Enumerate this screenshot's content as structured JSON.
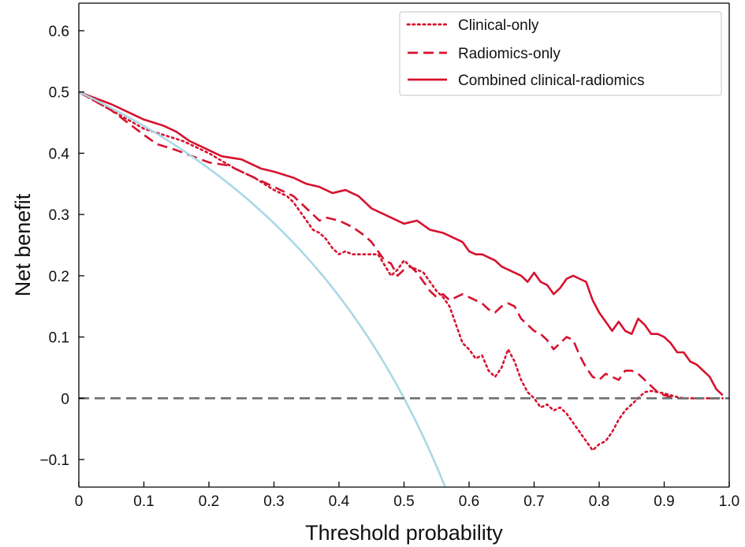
{
  "chart_data": {
    "type": "line",
    "xlabel": "Threshold probability",
    "ylabel": "Net benefit",
    "xlim": [
      0,
      1.0
    ],
    "ylim": [
      -0.145,
      0.645
    ],
    "xticks": [
      0,
      0.1,
      0.2,
      0.3,
      0.4,
      0.5,
      0.6,
      0.7,
      0.8,
      0.9,
      1.0
    ],
    "xtick_labels": [
      "0",
      "0.1",
      "0.2",
      "0.3",
      "0.4",
      "0.5",
      "0.6",
      "0.7",
      "0.8",
      "0.9",
      "1.0"
    ],
    "yticks": [
      -0.1,
      0,
      0.1,
      0.2,
      0.3,
      0.4,
      0.5,
      0.6
    ],
    "ytick_labels": [
      "−0.1",
      "0",
      "0.1",
      "0.2",
      "0.3",
      "0.4",
      "0.5",
      "0.6"
    ],
    "grid": false,
    "legend_position": "top-right",
    "series": [
      {
        "name": "Clinical-only",
        "style": "dotted",
        "color": "#d7122e",
        "x": [
          0,
          0.05,
          0.1,
          0.13,
          0.16,
          0.2,
          0.24,
          0.27,
          0.3,
          0.32,
          0.33,
          0.34,
          0.35,
          0.36,
          0.37,
          0.38,
          0.39,
          0.4,
          0.41,
          0.42,
          0.44,
          0.46,
          0.48,
          0.49,
          0.5,
          0.51,
          0.52,
          0.53,
          0.54,
          0.55,
          0.56,
          0.57,
          0.58,
          0.59,
          0.6,
          0.61,
          0.62,
          0.63,
          0.64,
          0.65,
          0.66,
          0.67,
          0.68,
          0.69,
          0.7,
          0.71,
          0.72,
          0.73,
          0.74,
          0.75,
          0.76,
          0.77,
          0.78,
          0.79,
          0.8,
          0.81,
          0.82,
          0.83,
          0.84,
          0.85,
          0.86,
          0.87,
          0.88,
          0.89,
          0.9,
          0.91,
          0.92,
          0.93,
          0.94,
          0.96,
          0.98,
          0.99
        ],
        "y": [
          0.5,
          0.47,
          0.44,
          0.43,
          0.42,
          0.4,
          0.375,
          0.36,
          0.34,
          0.33,
          0.32,
          0.305,
          0.29,
          0.275,
          0.27,
          0.26,
          0.245,
          0.235,
          0.24,
          0.235,
          0.235,
          0.235,
          0.2,
          0.21,
          0.225,
          0.215,
          0.21,
          0.205,
          0.19,
          0.175,
          0.165,
          0.15,
          0.12,
          0.09,
          0.08,
          0.065,
          0.07,
          0.045,
          0.035,
          0.05,
          0.08,
          0.06,
          0.03,
          0.01,
          0.0,
          -0.015,
          -0.01,
          -0.02,
          -0.015,
          -0.025,
          -0.04,
          -0.055,
          -0.07,
          -0.085,
          -0.075,
          -0.07,
          -0.055,
          -0.035,
          -0.02,
          -0.01,
          0.0,
          0.01,
          0.012,
          0.01,
          0.008,
          0.005,
          0.002,
          0.0,
          0.0,
          0.0,
          0.0,
          0.0
        ]
      },
      {
        "name": "Radiomics-only",
        "style": "dashed",
        "color": "#d7122e",
        "x": [
          0,
          0.05,
          0.1,
          0.12,
          0.15,
          0.2,
          0.23,
          0.26,
          0.3,
          0.32,
          0.33,
          0.34,
          0.35,
          0.36,
          0.37,
          0.38,
          0.4,
          0.42,
          0.44,
          0.45,
          0.46,
          0.47,
          0.48,
          0.49,
          0.5,
          0.51,
          0.52,
          0.53,
          0.54,
          0.55,
          0.56,
          0.57,
          0.58,
          0.59,
          0.6,
          0.61,
          0.62,
          0.63,
          0.64,
          0.65,
          0.66,
          0.67,
          0.68,
          0.69,
          0.7,
          0.71,
          0.72,
          0.73,
          0.74,
          0.75,
          0.76,
          0.77,
          0.78,
          0.79,
          0.8,
          0.81,
          0.82,
          0.83,
          0.84,
          0.85,
          0.86,
          0.87,
          0.88,
          0.89,
          0.9,
          0.91,
          0.92,
          0.94,
          0.96,
          0.98,
          0.99
        ],
        "y": [
          0.5,
          0.47,
          0.43,
          0.415,
          0.405,
          0.385,
          0.38,
          0.365,
          0.345,
          0.335,
          0.33,
          0.32,
          0.31,
          0.3,
          0.29,
          0.295,
          0.29,
          0.28,
          0.265,
          0.255,
          0.24,
          0.225,
          0.22,
          0.2,
          0.21,
          0.215,
          0.205,
          0.19,
          0.175,
          0.165,
          0.17,
          0.16,
          0.165,
          0.17,
          0.165,
          0.16,
          0.155,
          0.145,
          0.14,
          0.15,
          0.155,
          0.15,
          0.13,
          0.12,
          0.11,
          0.105,
          0.095,
          0.08,
          0.09,
          0.1,
          0.095,
          0.07,
          0.05,
          0.035,
          0.03,
          0.04,
          0.035,
          0.03,
          0.045,
          0.045,
          0.04,
          0.03,
          0.02,
          0.01,
          0.005,
          0.002,
          0.0,
          0.0,
          0.0,
          0.0,
          0.0
        ]
      },
      {
        "name": "Combined clinical-radiomics",
        "style": "solid",
        "color": "#d7122e",
        "x": [
          0,
          0.05,
          0.1,
          0.13,
          0.15,
          0.17,
          0.2,
          0.22,
          0.25,
          0.28,
          0.3,
          0.33,
          0.35,
          0.37,
          0.39,
          0.41,
          0.43,
          0.45,
          0.47,
          0.49,
          0.5,
          0.52,
          0.54,
          0.56,
          0.58,
          0.59,
          0.6,
          0.61,
          0.62,
          0.63,
          0.64,
          0.65,
          0.66,
          0.67,
          0.68,
          0.69,
          0.7,
          0.71,
          0.72,
          0.73,
          0.74,
          0.75,
          0.76,
          0.77,
          0.78,
          0.79,
          0.8,
          0.81,
          0.82,
          0.83,
          0.84,
          0.85,
          0.86,
          0.87,
          0.88,
          0.89,
          0.9,
          0.91,
          0.92,
          0.93,
          0.94,
          0.95,
          0.96,
          0.97,
          0.98,
          0.99
        ],
        "y": [
          0.5,
          0.48,
          0.455,
          0.445,
          0.435,
          0.42,
          0.405,
          0.395,
          0.39,
          0.375,
          0.37,
          0.36,
          0.35,
          0.345,
          0.335,
          0.34,
          0.33,
          0.31,
          0.3,
          0.29,
          0.285,
          0.29,
          0.275,
          0.27,
          0.26,
          0.255,
          0.24,
          0.235,
          0.235,
          0.23,
          0.225,
          0.215,
          0.21,
          0.205,
          0.2,
          0.19,
          0.205,
          0.19,
          0.185,
          0.17,
          0.18,
          0.195,
          0.2,
          0.195,
          0.19,
          0.16,
          0.14,
          0.125,
          0.11,
          0.125,
          0.11,
          0.105,
          0.13,
          0.12,
          0.105,
          0.105,
          0.1,
          0.09,
          0.075,
          0.075,
          0.06,
          0.055,
          0.045,
          0.035,
          0.015,
          0.005
        ]
      },
      {
        "name": "",
        "style": "solid",
        "color": "#a9d8e6",
        "formula": "0.5 - (1 - 0.5) * t / (1 - t)",
        "x_range": [
          0,
          0.575
        ]
      },
      {
        "name": "",
        "style": "dashed",
        "color": "#6f6f6f",
        "x": [
          0,
          1.0
        ],
        "y": [
          0,
          0
        ]
      }
    ]
  }
}
